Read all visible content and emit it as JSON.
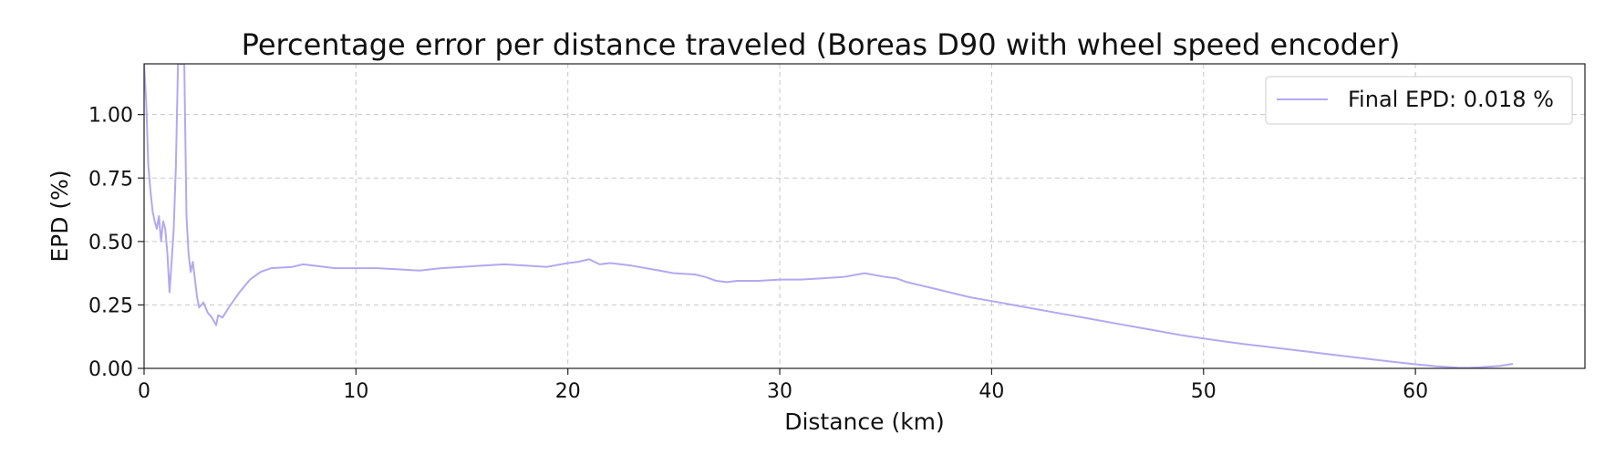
{
  "chart_data": {
    "type": "line",
    "title": "Percentage error per distance traveled (Boreas D90 with wheel speed encoder)",
    "xlabel": "Distance (km)",
    "ylabel": "EPD (%)",
    "xlim": [
      0,
      68
    ],
    "ylim": [
      0,
      1.2
    ],
    "xticks": [
      0,
      10,
      20,
      30,
      40,
      50,
      60
    ],
    "yticks": [
      0.0,
      0.25,
      0.5,
      0.75,
      1.0
    ],
    "xtick_labels": [
      "0",
      "10",
      "20",
      "30",
      "40",
      "50",
      "60"
    ],
    "ytick_labels": [
      "0.00",
      "0.25",
      "0.50",
      "0.75",
      "1.00"
    ],
    "grid": true,
    "legend_position": "top-right",
    "series": [
      {
        "name": "Final EPD: 0.018 %",
        "color": "#b4a8f0",
        "x": [
          0.0,
          0.1,
          0.2,
          0.3,
          0.4,
          0.5,
          0.6,
          0.7,
          0.8,
          0.9,
          1.0,
          1.1,
          1.2,
          1.3,
          1.4,
          1.5,
          1.6,
          1.7,
          1.8,
          1.9,
          2.0,
          2.1,
          2.2,
          2.3,
          2.4,
          2.5,
          2.6,
          2.8,
          3.0,
          3.2,
          3.4,
          3.5,
          3.7,
          4.0,
          4.5,
          5.0,
          5.5,
          6.0,
          7.0,
          7.5,
          8.0,
          9.0,
          10.0,
          11.0,
          12.0,
          13.0,
          14.0,
          15.0,
          16.0,
          17.0,
          18.0,
          19.0,
          20.0,
          20.5,
          21.0,
          21.5,
          22.0,
          23.0,
          24.0,
          25.0,
          26.0,
          26.5,
          27.0,
          27.5,
          28.0,
          29.0,
          30.0,
          31.0,
          32.0,
          33.0,
          34.0,
          35.0,
          35.5,
          36.0,
          37.0,
          38.0,
          39.0,
          40.0,
          41.0,
          42.0,
          43.0,
          44.0,
          45.0,
          46.0,
          47.0,
          48.0,
          49.0,
          50.0,
          51.0,
          52.0,
          53.0,
          54.0,
          55.0,
          56.0,
          57.0,
          58.0,
          59.0,
          60.0,
          61.0,
          62.0,
          62.5,
          63.0,
          64.0,
          64.6
        ],
        "y": [
          1.2,
          1.05,
          0.8,
          0.7,
          0.62,
          0.58,
          0.55,
          0.6,
          0.5,
          0.58,
          0.55,
          0.45,
          0.3,
          0.42,
          0.55,
          0.8,
          1.2,
          1.2,
          1.2,
          1.2,
          0.6,
          0.45,
          0.38,
          0.42,
          0.35,
          0.28,
          0.24,
          0.26,
          0.22,
          0.2,
          0.17,
          0.21,
          0.2,
          0.24,
          0.3,
          0.35,
          0.38,
          0.395,
          0.4,
          0.41,
          0.405,
          0.395,
          0.395,
          0.395,
          0.39,
          0.385,
          0.395,
          0.4,
          0.405,
          0.41,
          0.405,
          0.4,
          0.415,
          0.42,
          0.43,
          0.41,
          0.415,
          0.405,
          0.39,
          0.375,
          0.37,
          0.36,
          0.345,
          0.34,
          0.345,
          0.345,
          0.35,
          0.35,
          0.355,
          0.36,
          0.375,
          0.36,
          0.355,
          0.34,
          0.32,
          0.3,
          0.28,
          0.265,
          0.25,
          0.235,
          0.22,
          0.205,
          0.19,
          0.175,
          0.16,
          0.145,
          0.13,
          0.118,
          0.106,
          0.095,
          0.085,
          0.075,
          0.065,
          0.055,
          0.045,
          0.035,
          0.025,
          0.016,
          0.008,
          0.003,
          0.002,
          0.004,
          0.01,
          0.018
        ]
      }
    ]
  }
}
